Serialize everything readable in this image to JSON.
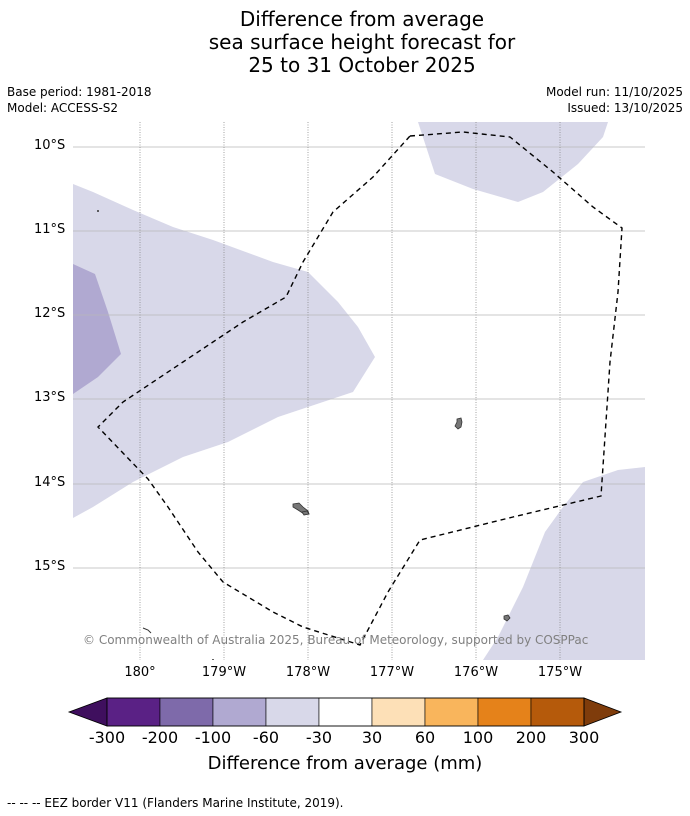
{
  "title": {
    "line1": "Difference from average",
    "line2": "sea surface height forecast for",
    "line3": "25 to 31 October 2025"
  },
  "meta": {
    "base_period": "Base period: 1981-2018",
    "model": "Model: ACCESS-S2",
    "model_run": "Model run: 11/10/2025",
    "issued": "Issued: 13/10/2025"
  },
  "axes": {
    "lat_labels": [
      "10°S",
      "11°S",
      "12°S",
      "13°S",
      "14°S",
      "15°S"
    ],
    "lon_labels": [
      "180°",
      "179°W",
      "178°W",
      "177°W",
      "176°W",
      "175°W"
    ],
    "grid": true
  },
  "copyright": "© Commonwealth of Australia 2025, Bureau of Meteorology, supported by COSPPac",
  "colorbar": {
    "title": "Difference from average (mm)",
    "ticks": [
      "-300",
      "-200",
      "-100",
      "-60",
      "-30",
      "30",
      "60",
      "100",
      "200",
      "300"
    ],
    "colors": [
      "#3f0f5e",
      "#5a2185",
      "#7e6aaa",
      "#b0a9d1",
      "#d8d8e9",
      "#ffffff",
      "#fde0b7",
      "#f9b55c",
      "#e5821a",
      "#b55a0b",
      "#7f3c0b"
    ]
  },
  "legend_footer": "--  --  -- EEZ border V11 (Flanders Marine Institute, 2019)."
}
